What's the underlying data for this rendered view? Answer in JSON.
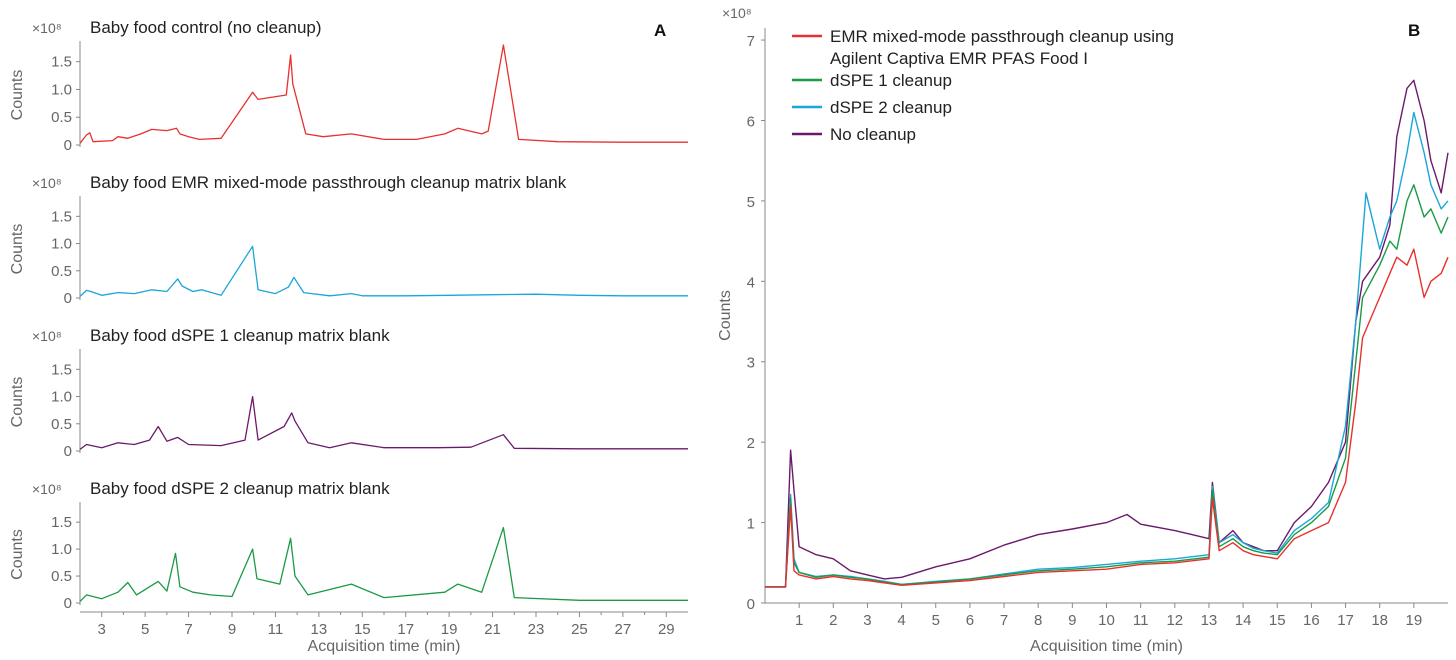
{
  "chart_data": [
    {
      "type": "line",
      "panel": "A",
      "xlabel": "Acquisition time (min)",
      "xlim": [
        2,
        30
      ],
      "x_ticks": [
        3,
        5,
        7,
        9,
        11,
        13,
        15,
        17,
        19,
        21,
        23,
        25,
        27,
        29
      ],
      "x_tick_labels": [
        "3",
        "5",
        "7",
        "9",
        "11",
        "13",
        "15",
        "17",
        "19",
        "21",
        "23",
        "25",
        "27",
        "29"
      ],
      "subplots": [
        {
          "title": "Baby food control (no cleanup)",
          "ylabel": "Counts",
          "y_multiplier": "×10⁸",
          "ylim": [
            0,
            1.8
          ],
          "y_ticks": [
            0,
            0.5,
            1.0,
            1.5
          ],
          "y_tick_labels": [
            "0",
            "0.5",
            "1.0",
            "1.5"
          ],
          "color": "#e8312f",
          "x": [
            2,
            2.3,
            2.45,
            2.6,
            3.5,
            3.75,
            4.2,
            4.8,
            5.3,
            6.0,
            6.45,
            6.6,
            7.0,
            7.5,
            8.5,
            9.95,
            10.2,
            11.5,
            11.7,
            11.8,
            12.4,
            13.2,
            14.5,
            16.0,
            17.5,
            18.8,
            19.4,
            20.5,
            20.8,
            21.5,
            22.2,
            24.0,
            27.0,
            30.0
          ],
          "values": [
            0.03,
            0.18,
            0.22,
            0.06,
            0.08,
            0.15,
            0.12,
            0.2,
            0.28,
            0.26,
            0.3,
            0.2,
            0.15,
            0.1,
            0.12,
            0.95,
            0.82,
            0.9,
            1.62,
            1.1,
            0.2,
            0.15,
            0.2,
            0.1,
            0.1,
            0.2,
            0.3,
            0.2,
            0.25,
            1.8,
            0.1,
            0.06,
            0.05,
            0.05
          ]
        },
        {
          "title": "Baby food EMR mixed-mode passthrough cleanup matrix blank",
          "ylabel": "Counts",
          "y_multiplier": "×10⁸",
          "ylim": [
            0,
            1.8
          ],
          "y_ticks": [
            0,
            0.5,
            1.0,
            1.5
          ],
          "y_tick_labels": [
            "0",
            "0.5",
            "1.0",
            "1.5"
          ],
          "color": "#1ba6d8",
          "x": [
            2,
            2.3,
            2.5,
            3.0,
            3.75,
            4.5,
            5.3,
            6.0,
            6.5,
            6.7,
            7.2,
            7.6,
            8.5,
            9.95,
            10.2,
            11.0,
            11.6,
            11.85,
            12.3,
            13.5,
            14.5,
            15.0,
            17.0,
            19.0,
            21.0,
            23.0,
            25.0,
            27.0,
            30.0
          ],
          "values": [
            0.03,
            0.14,
            0.12,
            0.05,
            0.1,
            0.08,
            0.15,
            0.12,
            0.35,
            0.22,
            0.12,
            0.15,
            0.05,
            0.95,
            0.15,
            0.08,
            0.2,
            0.38,
            0.1,
            0.04,
            0.08,
            0.04,
            0.04,
            0.05,
            0.06,
            0.07,
            0.05,
            0.04,
            0.04
          ]
        },
        {
          "title": "Baby food dSPE 1 cleanup matrix blank",
          "ylabel": "Counts",
          "y_multiplier": "×10⁸",
          "ylim": [
            0,
            1.8
          ],
          "y_ticks": [
            0,
            0.5,
            1.0,
            1.5
          ],
          "y_tick_labels": [
            "0",
            "0.5",
            "1.0",
            "1.5"
          ],
          "color": "#6b1a6b",
          "x": [
            2,
            2.3,
            3.0,
            3.75,
            4.5,
            5.2,
            5.6,
            6.0,
            6.5,
            7.0,
            8.5,
            9.6,
            9.95,
            10.2,
            11.4,
            11.75,
            11.9,
            12.5,
            13.5,
            14.5,
            16.0,
            18.5,
            20.0,
            21.5,
            22.0,
            25.0,
            30.0
          ],
          "values": [
            0.03,
            0.12,
            0.06,
            0.15,
            0.12,
            0.2,
            0.45,
            0.18,
            0.25,
            0.12,
            0.1,
            0.2,
            1.0,
            0.2,
            0.45,
            0.7,
            0.55,
            0.15,
            0.06,
            0.15,
            0.06,
            0.06,
            0.07,
            0.3,
            0.05,
            0.04,
            0.04
          ]
        },
        {
          "title": "Baby food dSPE 2 cleanup matrix blank",
          "ylabel": "Counts",
          "y_multiplier": "×10⁸",
          "ylim": [
            0,
            1.8
          ],
          "y_ticks": [
            0,
            0.5,
            1.0,
            1.5
          ],
          "y_tick_labels": [
            "0",
            "0.5",
            "1.0",
            "1.5"
          ],
          "color": "#1a9a46",
          "x": [
            2,
            2.3,
            3.0,
            3.75,
            4.2,
            4.6,
            5.2,
            5.6,
            6.0,
            6.4,
            6.6,
            7.2,
            8.0,
            9.0,
            9.95,
            10.15,
            11.2,
            11.7,
            11.9,
            12.5,
            14.5,
            16.0,
            18.8,
            19.4,
            20.5,
            21.5,
            22.0,
            25.0,
            30.0
          ],
          "values": [
            0.03,
            0.15,
            0.08,
            0.2,
            0.38,
            0.15,
            0.3,
            0.4,
            0.22,
            0.92,
            0.3,
            0.2,
            0.15,
            0.12,
            1.0,
            0.45,
            0.35,
            1.2,
            0.5,
            0.15,
            0.35,
            0.1,
            0.2,
            0.35,
            0.2,
            1.4,
            0.1,
            0.05,
            0.05
          ]
        }
      ]
    },
    {
      "type": "line",
      "panel": "B",
      "xlabel": "Acquisition time (min)",
      "ylabel": "Counts",
      "y_multiplier": "×10⁸",
      "xlim": [
        0,
        20
      ],
      "ylim": [
        0,
        7.15
      ],
      "x_ticks": [
        1,
        2,
        3,
        4,
        5,
        6,
        7,
        8,
        9,
        10,
        11,
        12,
        13,
        14,
        15,
        16,
        17,
        18,
        19
      ],
      "x_tick_labels": [
        "1",
        "2",
        "3",
        "4",
        "5",
        "6",
        "7",
        "8",
        "9",
        "10",
        "11",
        "12",
        "13",
        "14",
        "15",
        "16",
        "17",
        "18",
        "19"
      ],
      "y_ticks": [
        0,
        1,
        2,
        3,
        4,
        5,
        6,
        7
      ],
      "y_tick_labels": [
        "0",
        "1",
        "2",
        "3",
        "4",
        "5",
        "6",
        "7"
      ],
      "legend": "top-left",
      "series": [
        {
          "name": "EMR mixed-mode passthrough cleanup using",
          "name_line2": "Agilent Captiva EMR PFAS Food I",
          "color": "#e8312f",
          "x": [
            0,
            0.6,
            0.75,
            0.85,
            1.0,
            1.5,
            2.0,
            2.5,
            3.0,
            3.5,
            4.0,
            5.0,
            6.0,
            7.0,
            8.0,
            9.0,
            10.0,
            11.0,
            12.0,
            13.0,
            13.1,
            13.3,
            13.7,
            14.0,
            14.3,
            14.6,
            15.0,
            15.5,
            16.0,
            16.5,
            17.0,
            17.3,
            17.5,
            18.0,
            18.3,
            18.5,
            18.8,
            19.0,
            19.3,
            19.5,
            19.8,
            20.0
          ],
          "values": [
            0.2,
            0.2,
            1.2,
            0.4,
            0.35,
            0.3,
            0.33,
            0.3,
            0.28,
            0.25,
            0.22,
            0.25,
            0.28,
            0.33,
            0.38,
            0.4,
            0.42,
            0.48,
            0.5,
            0.55,
            1.3,
            0.65,
            0.75,
            0.65,
            0.6,
            0.58,
            0.55,
            0.8,
            0.9,
            1.0,
            1.5,
            2.5,
            3.3,
            3.8,
            4.1,
            4.3,
            4.2,
            4.4,
            3.8,
            4.0,
            4.1,
            4.3
          ]
        },
        {
          "name": "dSPE 1 cleanup",
          "color": "#1a9a46",
          "x": [
            0,
            0.6,
            0.75,
            0.85,
            1.0,
            1.5,
            2.0,
            2.5,
            3.0,
            3.5,
            4.0,
            5.0,
            6.0,
            7.0,
            8.0,
            9.0,
            10.0,
            11.0,
            12.0,
            13.0,
            13.1,
            13.3,
            13.7,
            14.0,
            14.3,
            14.6,
            15.0,
            15.5,
            16.0,
            16.5,
            17.0,
            17.3,
            17.5,
            18.0,
            18.3,
            18.5,
            18.8,
            19.0,
            19.3,
            19.5,
            19.8,
            20.0
          ],
          "values": [
            0.2,
            0.2,
            1.3,
            0.5,
            0.38,
            0.32,
            0.35,
            0.32,
            0.3,
            0.26,
            0.23,
            0.26,
            0.3,
            0.35,
            0.4,
            0.42,
            0.45,
            0.5,
            0.52,
            0.57,
            1.4,
            0.7,
            0.8,
            0.7,
            0.65,
            0.62,
            0.6,
            0.85,
            1.0,
            1.2,
            1.8,
            3.0,
            3.8,
            4.2,
            4.5,
            4.4,
            5.0,
            5.2,
            4.8,
            4.9,
            4.6,
            4.8
          ]
        },
        {
          "name": "dSPE 2 cleanup",
          "color": "#1ba6d8",
          "x": [
            0,
            0.6,
            0.75,
            0.85,
            1.0,
            1.5,
            2.0,
            2.5,
            3.0,
            3.5,
            4.0,
            5.0,
            6.0,
            7.0,
            8.0,
            9.0,
            10.0,
            11.0,
            12.0,
            13.0,
            13.1,
            13.3,
            13.7,
            14.0,
            14.3,
            14.6,
            15.0,
            15.5,
            16.0,
            16.5,
            17.0,
            17.3,
            17.6,
            18.0,
            18.3,
            18.5,
            18.8,
            19.0,
            19.3,
            19.5,
            19.8,
            20.0
          ],
          "values": [
            0.2,
            0.2,
            1.35,
            0.55,
            0.38,
            0.33,
            0.35,
            0.33,
            0.3,
            0.27,
            0.23,
            0.27,
            0.3,
            0.36,
            0.42,
            0.44,
            0.48,
            0.52,
            0.55,
            0.6,
            1.45,
            0.75,
            0.85,
            0.75,
            0.68,
            0.65,
            0.62,
            0.9,
            1.05,
            1.25,
            2.2,
            3.5,
            5.1,
            4.4,
            4.8,
            5.0,
            5.6,
            6.1,
            5.6,
            5.2,
            4.9,
            5.0
          ]
        },
        {
          "name": "No cleanup",
          "color": "#6b1a6b",
          "x": [
            0,
            0.6,
            0.75,
            0.85,
            1.0,
            1.5,
            2.0,
            2.5,
            3.0,
            3.5,
            4.0,
            5.0,
            6.0,
            7.0,
            8.0,
            9.0,
            10.0,
            10.6,
            11.0,
            12.0,
            12.5,
            13.0,
            13.1,
            13.3,
            13.7,
            14.0,
            14.3,
            14.6,
            15.0,
            15.5,
            16.0,
            16.5,
            17.0,
            17.3,
            17.5,
            18.0,
            18.3,
            18.5,
            18.8,
            19.0,
            19.3,
            19.5,
            19.8,
            20.0
          ],
          "values": [
            0.2,
            0.2,
            1.9,
            1.4,
            0.7,
            0.6,
            0.55,
            0.4,
            0.35,
            0.3,
            0.32,
            0.45,
            0.55,
            0.72,
            0.85,
            0.92,
            1.0,
            1.1,
            0.98,
            0.9,
            0.85,
            0.8,
            1.5,
            0.75,
            0.9,
            0.75,
            0.7,
            0.65,
            0.65,
            1.0,
            1.2,
            1.5,
            2.0,
            3.5,
            4.0,
            4.3,
            4.7,
            5.8,
            6.4,
            6.5,
            6.0,
            5.5,
            5.1,
            5.6
          ]
        }
      ]
    }
  ],
  "labels": {
    "panel_a": "A",
    "panel_b": "B"
  }
}
